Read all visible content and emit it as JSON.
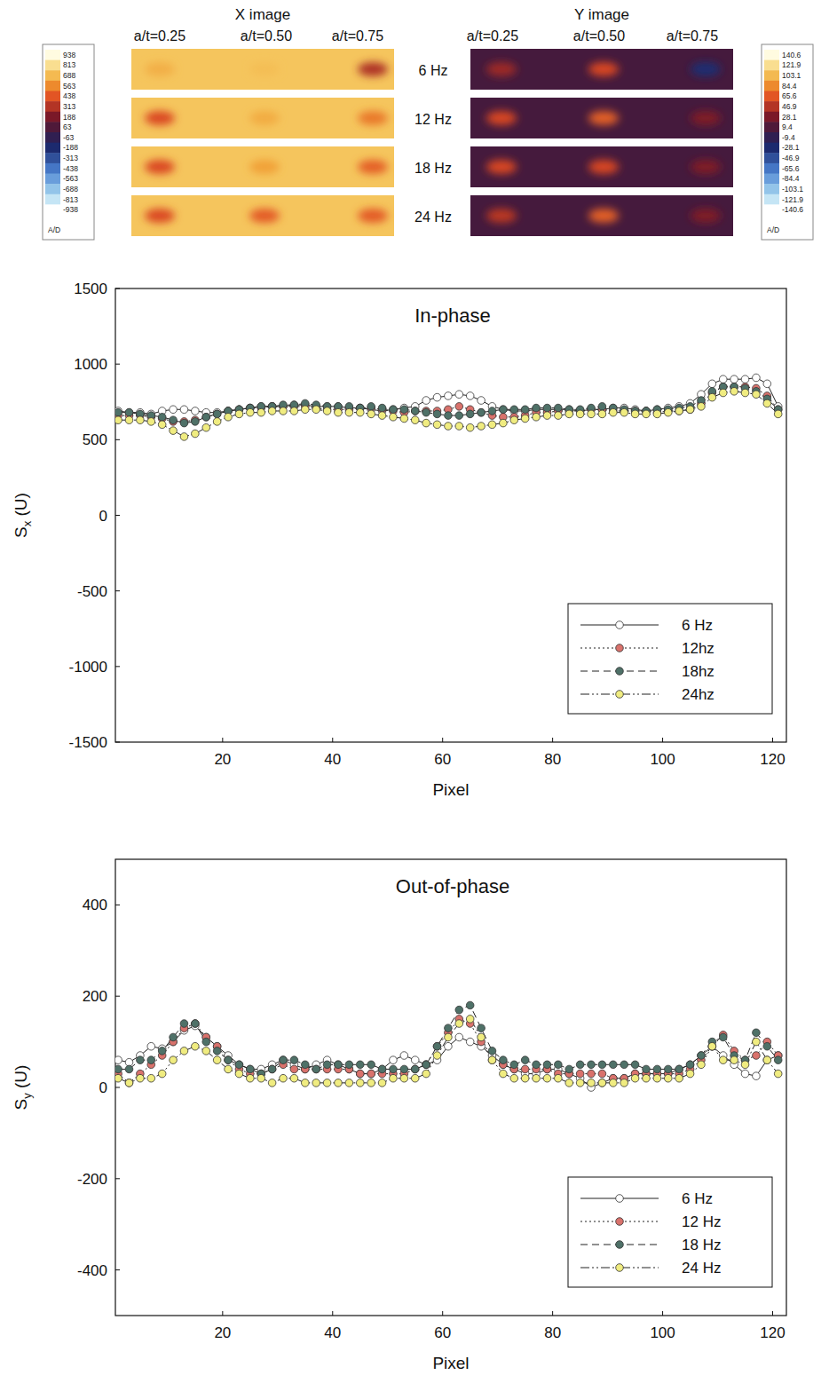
{
  "chart_data": [
    {
      "type": "line",
      "title": "In-phase",
      "xlabel": "Pixel",
      "ylabel": "Sx (U)",
      "x": [
        1,
        3,
        5,
        7,
        9,
        11,
        13,
        15,
        17,
        19,
        21,
        23,
        25,
        27,
        29,
        31,
        33,
        35,
        37,
        39,
        41,
        43,
        45,
        47,
        49,
        51,
        53,
        55,
        57,
        59,
        61,
        63,
        65,
        67,
        69,
        71,
        73,
        75,
        77,
        79,
        81,
        83,
        85,
        87,
        89,
        91,
        93,
        95,
        97,
        99,
        101,
        103,
        105,
        107,
        109,
        111,
        113,
        115,
        117,
        119,
        121
      ],
      "xlim": [
        0.5,
        122.5
      ],
      "xticks": [
        20,
        40,
        60,
        80,
        100,
        120
      ],
      "ylim": [
        -1500,
        1500
      ],
      "yticks": [
        -1500,
        -1000,
        -500,
        0,
        500,
        1000,
        1500
      ],
      "grid": false,
      "legend": "lower right",
      "marker": "circle",
      "series": [
        {
          "name": "6 Hz",
          "color": "#ffffff",
          "line_style": "solid",
          "values": [
            690,
            680,
            680,
            670,
            690,
            700,
            700,
            690,
            680,
            680,
            690,
            700,
            710,
            720,
            720,
            720,
            730,
            730,
            720,
            720,
            720,
            710,
            710,
            700,
            690,
            700,
            710,
            720,
            760,
            780,
            790,
            800,
            790,
            760,
            720,
            700,
            690,
            690,
            700,
            700,
            700,
            700,
            690,
            700,
            700,
            710,
            710,
            700,
            690,
            700,
            710,
            720,
            740,
            800,
            870,
            900,
            900,
            900,
            910,
            870,
            720
          ]
        },
        {
          "name": "12hz",
          "color": "#d9726c",
          "line_style": "dotted",
          "values": [
            660,
            660,
            660,
            650,
            640,
            620,
            620,
            630,
            650,
            670,
            690,
            700,
            710,
            710,
            720,
            720,
            720,
            720,
            710,
            700,
            700,
            700,
            710,
            710,
            700,
            690,
            680,
            690,
            690,
            690,
            700,
            720,
            700,
            680,
            660,
            650,
            650,
            660,
            680,
            680,
            690,
            690,
            690,
            700,
            700,
            690,
            690,
            690,
            690,
            680,
            690,
            690,
            700,
            740,
            810,
            850,
            850,
            850,
            840,
            790,
            700
          ]
        },
        {
          "name": "18hz",
          "color": "#4f7168",
          "line_style": "dashed",
          "values": [
            680,
            680,
            670,
            660,
            650,
            630,
            610,
            620,
            650,
            670,
            690,
            700,
            710,
            720,
            720,
            730,
            730,
            740,
            730,
            720,
            720,
            720,
            710,
            720,
            710,
            700,
            700,
            690,
            680,
            670,
            660,
            660,
            670,
            680,
            690,
            700,
            700,
            700,
            710,
            710,
            710,
            700,
            700,
            710,
            720,
            710,
            700,
            690,
            690,
            700,
            700,
            710,
            720,
            760,
            820,
            850,
            850,
            840,
            820,
            770,
            700
          ]
        },
        {
          "name": "24hz",
          "color": "#f0ec80",
          "line_style": "dashdot",
          "values": [
            630,
            630,
            630,
            620,
            600,
            560,
            520,
            540,
            580,
            620,
            650,
            670,
            680,
            680,
            690,
            690,
            690,
            700,
            700,
            690,
            680,
            680,
            680,
            670,
            660,
            650,
            640,
            630,
            610,
            600,
            590,
            590,
            580,
            590,
            600,
            610,
            630,
            640,
            650,
            660,
            660,
            670,
            670,
            670,
            670,
            680,
            680,
            670,
            670,
            670,
            680,
            690,
            700,
            720,
            780,
            810,
            820,
            810,
            800,
            740,
            670
          ]
        }
      ]
    },
    {
      "type": "line",
      "title": "Out-of-phase",
      "xlabel": "Pixel",
      "ylabel": "Sy (U)",
      "x": [
        1,
        3,
        5,
        7,
        9,
        11,
        13,
        15,
        17,
        19,
        21,
        23,
        25,
        27,
        29,
        31,
        33,
        35,
        37,
        39,
        41,
        43,
        45,
        47,
        49,
        51,
        53,
        55,
        57,
        59,
        61,
        63,
        65,
        67,
        69,
        71,
        73,
        75,
        77,
        79,
        81,
        83,
        85,
        87,
        89,
        91,
        93,
        95,
        97,
        99,
        101,
        103,
        105,
        107,
        109,
        111,
        113,
        115,
        117,
        119,
        121
      ],
      "xlim": [
        0.5,
        122.5
      ],
      "xticks": [
        20,
        40,
        60,
        80,
        100,
        120
      ],
      "ylim": [
        -500,
        500
      ],
      "yticks": [
        -400,
        -200,
        0,
        200,
        400
      ],
      "grid": false,
      "legend": "lower right",
      "marker": "circle",
      "series": [
        {
          "name": "6 Hz",
          "color": "#ffffff",
          "line_style": "solid",
          "values": [
            60,
            55,
            70,
            90,
            85,
            100,
            125,
            135,
            110,
            90,
            70,
            50,
            40,
            40,
            50,
            60,
            50,
            40,
            50,
            60,
            50,
            40,
            30,
            30,
            40,
            60,
            70,
            60,
            50,
            60,
            90,
            110,
            100,
            90,
            70,
            50,
            40,
            30,
            30,
            40,
            40,
            30,
            20,
            0,
            10,
            20,
            20,
            30,
            30,
            30,
            30,
            40,
            50,
            70,
            90,
            70,
            50,
            30,
            25,
            60,
            70
          ]
        },
        {
          "name": "12 Hz",
          "color": "#d9726c",
          "line_style": "dotted",
          "values": [
            30,
            10,
            30,
            50,
            70,
            100,
            130,
            140,
            110,
            90,
            60,
            40,
            30,
            30,
            40,
            50,
            40,
            40,
            40,
            40,
            40,
            40,
            30,
            30,
            30,
            30,
            30,
            40,
            50,
            90,
            120,
            150,
            140,
            100,
            60,
            50,
            40,
            40,
            40,
            40,
            30,
            30,
            30,
            30,
            30,
            20,
            20,
            30,
            30,
            30,
            30,
            30,
            40,
            60,
            90,
            115,
            80,
            60,
            70,
            100,
            70
          ]
        },
        {
          "name": "18 Hz",
          "color": "#4f7168",
          "line_style": "dashed",
          "values": [
            40,
            40,
            60,
            60,
            80,
            110,
            140,
            140,
            100,
            80,
            60,
            50,
            40,
            30,
            40,
            60,
            60,
            50,
            40,
            50,
            50,
            50,
            50,
            50,
            40,
            40,
            40,
            40,
            50,
            90,
            130,
            170,
            180,
            130,
            80,
            60,
            50,
            60,
            50,
            50,
            50,
            40,
            50,
            50,
            50,
            50,
            50,
            50,
            40,
            40,
            40,
            40,
            50,
            70,
            100,
            110,
            70,
            60,
            120,
            90,
            60
          ]
        },
        {
          "name": "24 Hz",
          "color": "#f0ec80",
          "line_style": "dashdot",
          "values": [
            20,
            10,
            20,
            20,
            30,
            60,
            80,
            90,
            80,
            60,
            40,
            30,
            20,
            20,
            10,
            20,
            20,
            10,
            10,
            10,
            10,
            10,
            10,
            10,
            10,
            20,
            20,
            20,
            30,
            70,
            110,
            140,
            150,
            110,
            60,
            30,
            20,
            20,
            20,
            20,
            20,
            10,
            10,
            10,
            10,
            10,
            10,
            20,
            20,
            20,
            20,
            20,
            30,
            50,
            90,
            60,
            60,
            50,
            100,
            60,
            30
          ]
        }
      ]
    }
  ],
  "images": {
    "frequencies": [
      "6 Hz",
      "12 Hz",
      "18 Hz",
      "24 Hz"
    ],
    "x_image": {
      "title": "X image",
      "crack_labels": [
        "a/t=0.25",
        "a/t=0.50",
        "a/t=0.75"
      ],
      "background": 720,
      "spots": [
        [
          660,
          700,
          300
        ],
        [
          400,
          650,
          520
        ],
        [
          400,
          620,
          460
        ],
        [
          400,
          450,
          450
        ]
      ]
    },
    "y_image": {
      "title": "Y image",
      "crack_labels": [
        "a/t=0.25",
        "a/t=0.50",
        "a/t=0.75"
      ],
      "background": 5,
      "spots": [
        [
          40,
          60,
          -30
        ],
        [
          60,
          70,
          30
        ],
        [
          60,
          60,
          30
        ],
        [
          50,
          70,
          30
        ]
      ]
    },
    "x_colorbar": {
      "range": [
        -938,
        938
      ],
      "ticks": [
        938,
        813,
        688,
        563,
        438,
        313,
        188,
        63,
        -63,
        -188,
        -313,
        -438,
        -563,
        -688,
        -813,
        -938
      ],
      "unit": "A/D"
    },
    "y_colorbar": {
      "range": [
        -140.6,
        140.6
      ],
      "ticks": [
        140.6,
        121.9,
        103.1,
        84.4,
        65.6,
        46.9,
        28.1,
        9.4,
        -9.4,
        -28.1,
        -46.9,
        -65.6,
        -84.4,
        -103.1,
        -121.9,
        -140.6
      ],
      "unit": "A/D"
    }
  }
}
